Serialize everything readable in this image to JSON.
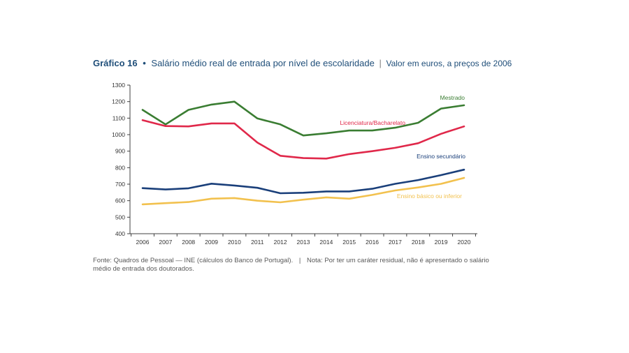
{
  "title": {
    "number": "Gráfico 16",
    "bullet": "•",
    "main": "Salário médio real de entrada por nível de escolaridade",
    "separator": "|",
    "subtitle": "Valor em euros, a preços de 2006"
  },
  "footer": {
    "source": "Fonte: Quadros de Pessoal — INE (cálculos do Banco de Portugal).",
    "separator": "|",
    "note": "Nota: Por ter um caráter residual, não é apresentado o salário médio de entrada dos doutorados."
  },
  "chart_data": {
    "type": "line",
    "title": "Salário médio real de entrada por nível de escolaridade",
    "xlabel": "",
    "ylabel": "",
    "ylim": [
      400,
      1300
    ],
    "yticks": [
      400,
      500,
      600,
      700,
      800,
      900,
      1000,
      1100,
      1200,
      1300
    ],
    "grid": false,
    "categories": [
      "2006",
      "2007",
      "2008",
      "2009",
      "2010",
      "2011",
      "2012",
      "2013",
      "2014",
      "2015",
      "2016",
      "2017",
      "2018",
      "2019",
      "2020"
    ],
    "series": [
      {
        "name": "Mestrado",
        "color": "#3a7d32",
        "values": [
          1150,
          1062,
          1150,
          1182,
          1200,
          1098,
          1062,
          995,
          1008,
          1025,
          1025,
          1042,
          1072,
          1158,
          1178
        ]
      },
      {
        "name": "Licenciatura/Bacharelato",
        "color": "#e0284a",
        "values": [
          1088,
          1052,
          1050,
          1068,
          1068,
          952,
          872,
          858,
          855,
          882,
          900,
          920,
          948,
          1005,
          1050
        ]
      },
      {
        "name": "Ensino secundário",
        "color": "#1a3f7a",
        "values": [
          676,
          668,
          675,
          703,
          692,
          678,
          645,
          648,
          656,
          656,
          672,
          702,
          725,
          755,
          788
        ]
      },
      {
        "name": "Ensino básico ou inferior",
        "color": "#f2c14e",
        "values": [
          578,
          585,
          592,
          612,
          616,
          600,
          590,
          606,
          620,
          612,
          635,
          662,
          680,
          702,
          738
        ]
      }
    ]
  }
}
